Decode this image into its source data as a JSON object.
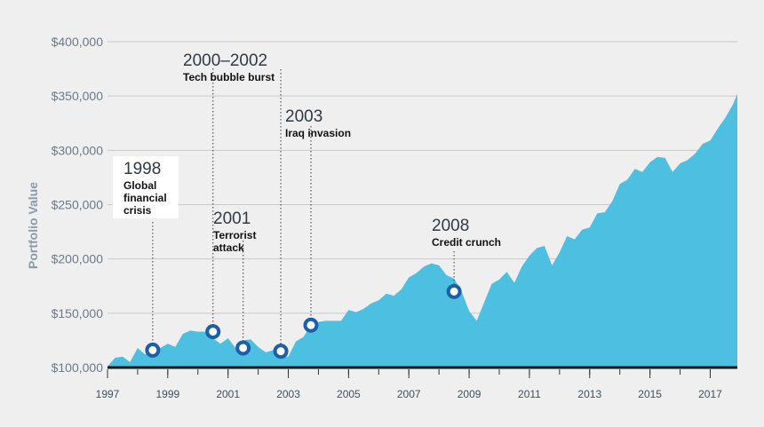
{
  "chart_data": {
    "type": "area",
    "title": "",
    "xlabel": "",
    "ylabel": "Portfolio Value",
    "xlim": [
      1997.0,
      2017.9
    ],
    "ylim": [
      100000,
      400000
    ],
    "y_ticks": [
      100000,
      150000,
      200000,
      250000,
      300000,
      350000,
      400000
    ],
    "y_tick_labels": [
      "$100,000",
      "$150,000",
      "$200,000",
      "$250,000",
      "$300,000",
      "$350,000",
      "$400,000"
    ],
    "x_ticks": [
      1997,
      1999,
      2001,
      2003,
      2005,
      2007,
      2009,
      2011,
      2013,
      2015,
      2017
    ],
    "x_tick_labels": [
      "1997",
      "1999",
      "2001",
      "2003",
      "2005",
      "2007",
      "2009",
      "2011",
      "2013",
      "2015",
      "2017"
    ],
    "grid": "horizontal",
    "colors": {
      "area": "#4dbfe0",
      "baseline": "#111111",
      "marker": "#1a5fa8",
      "grid": "#c9c9c9"
    },
    "series": [
      {
        "x": [
          1997.0,
          1997.25,
          1997.5,
          1997.75,
          1998.0,
          1998.25,
          1998.5,
          1998.75,
          1999.0,
          1999.25,
          1999.5,
          1999.75,
          2000.0,
          2000.25,
          2000.5,
          2000.75,
          2001.0,
          2001.25,
          2001.5,
          2001.75,
          2002.0,
          2002.25,
          2002.5,
          2002.75,
          2003.0,
          2003.25,
          2003.5,
          2003.75,
          2004.0,
          2004.25,
          2004.5,
          2004.75,
          2005.0,
          2005.25,
          2005.5,
          2005.75,
          2006.0,
          2006.25,
          2006.5,
          2006.75,
          2007.0,
          2007.25,
          2007.5,
          2007.75,
          2008.0,
          2008.25,
          2008.5,
          2008.75,
          2009.0,
          2009.25,
          2009.5,
          2009.75,
          2010.0,
          2010.25,
          2010.5,
          2010.75,
          2011.0,
          2011.25,
          2011.5,
          2011.75,
          2012.0,
          2012.25,
          2012.5,
          2012.75,
          2013.0,
          2013.25,
          2013.5,
          2013.75,
          2014.0,
          2014.25,
          2014.5,
          2014.75,
          2015.0,
          2015.25,
          2015.5,
          2015.75,
          2016.0,
          2016.25,
          2016.5,
          2016.75,
          2017.0,
          2017.25,
          2017.5,
          2017.75,
          2017.9
        ],
        "y": [
          101000,
          109000,
          110000,
          105000,
          118000,
          112000,
          116000,
          118000,
          122000,
          119000,
          131000,
          134000,
          133000,
          133000,
          127000,
          122000,
          127000,
          118000,
          125000,
          126000,
          119000,
          114000,
          116000,
          111000,
          110000,
          124000,
          128000,
          139000,
          142000,
          143000,
          143000,
          143000,
          153000,
          151000,
          154000,
          159000,
          162000,
          168000,
          166000,
          172000,
          183000,
          187000,
          193000,
          196000,
          194000,
          185000,
          182000,
          170000,
          152000,
          143000,
          160000,
          177000,
          181000,
          188000,
          178000,
          193000,
          203000,
          210000,
          212000,
          194000,
          206000,
          221000,
          218000,
          227000,
          229000,
          242000,
          243000,
          253000,
          269000,
          273000,
          283000,
          280000,
          289000,
          294000,
          293000,
          280000,
          288000,
          291000,
          297000,
          306000,
          309000,
          320000,
          330000,
          342000,
          352000
        ]
      }
    ],
    "annotations": [
      {
        "year": "1998",
        "lines": [
          "Global",
          "financial",
          "crisis"
        ],
        "x": 1998.5,
        "y": 116000,
        "boxed": true
      },
      {
        "year": "2000–2002",
        "lines": [
          "Tech bubble burst"
        ],
        "x": 2000.5,
        "y": 133000,
        "boxed": false
      },
      {
        "year": "2001",
        "lines": [
          "Terrorist",
          "attack"
        ],
        "x": 2001.5,
        "y": 118000,
        "boxed": false
      },
      {
        "year": "",
        "lines": [],
        "x": 2002.75,
        "y": 115000,
        "boxed": false
      },
      {
        "year": "2003",
        "lines": [
          "Iraq invasion"
        ],
        "x": 2003.75,
        "y": 139000,
        "boxed": false
      },
      {
        "year": "2008",
        "lines": [
          "Credit crunch"
        ],
        "x": 2008.5,
        "y": 170000,
        "boxed": false
      }
    ]
  }
}
